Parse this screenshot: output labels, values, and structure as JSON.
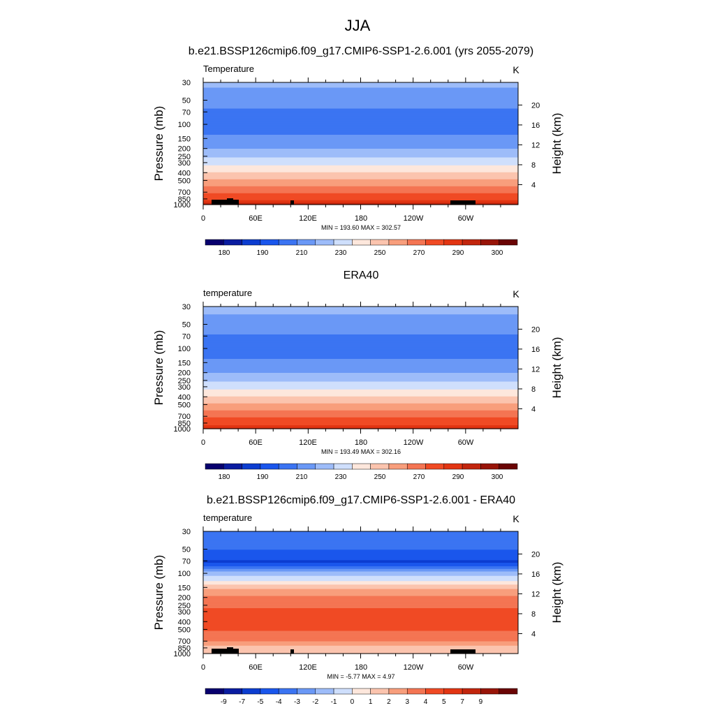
{
  "figure": {
    "season": "JJA"
  },
  "chart_data": [
    {
      "type": "heatmap",
      "title": "b.e21.BSSP126cmip6.f09_g17.CMIP6-SSP1-2.6.001 (yrs 2055-2079)",
      "variable_label": "Temperature",
      "units": "K",
      "ylabel": "Pressure (mb)",
      "ylabel_right": "Height (km)",
      "y_scale": "log",
      "y_ticks": [
        30,
        50,
        70,
        100,
        150,
        200,
        250,
        300,
        400,
        500,
        700,
        850,
        1000
      ],
      "y_tick_labels": [
        "30",
        "50",
        "70",
        "100",
        "150",
        "200",
        "250",
        "300",
        "400",
        "500",
        "700",
        "850",
        "1000"
      ],
      "right_ticks_km": [
        4,
        8,
        12,
        16,
        20
      ],
      "right_tick_labels": [
        "4",
        "8",
        "12",
        "16",
        "20"
      ],
      "x_tick_labels": [
        "0",
        "60E",
        "120E",
        "180",
        "120W",
        "60W"
      ],
      "stats_label": "MIN = 193.60  MAX = 302.57",
      "min": 193.6,
      "max": 302.57,
      "profile": [
        [
          30,
          222
        ],
        [
          40,
          218
        ],
        [
          50,
          214
        ],
        [
          60,
          211
        ],
        [
          70,
          208
        ],
        [
          80,
          206
        ],
        [
          100,
          206
        ],
        [
          120,
          208
        ],
        [
          150,
          212
        ],
        [
          200,
          220
        ],
        [
          250,
          228
        ],
        [
          300,
          236
        ],
        [
          400,
          251
        ],
        [
          500,
          262
        ],
        [
          600,
          271
        ],
        [
          700,
          279
        ],
        [
          850,
          288
        ],
        [
          925,
          293
        ],
        [
          1000,
          298
        ]
      ],
      "colorbar_labels": [
        "180",
        "190",
        "210",
        "230",
        "250",
        "270",
        "290",
        "300"
      ],
      "colorbar_levels": [
        175,
        180,
        185,
        190,
        200,
        210,
        220,
        230,
        240,
        250,
        260,
        270,
        280,
        290,
        295,
        300,
        305
      ],
      "show_topography": true
    },
    {
      "type": "heatmap",
      "title": "ERA40",
      "variable_label": "temperature",
      "units": "K",
      "ylabel": "Pressure (mb)",
      "ylabel_right": "Height (km)",
      "y_scale": "log",
      "y_ticks": [
        30,
        50,
        70,
        100,
        150,
        200,
        250,
        300,
        400,
        500,
        700,
        850,
        1000
      ],
      "y_tick_labels": [
        "30",
        "50",
        "70",
        "100",
        "150",
        "200",
        "250",
        "300",
        "400",
        "500",
        "700",
        "850",
        "1000"
      ],
      "right_ticks_km": [
        4,
        8,
        12,
        16,
        20
      ],
      "right_tick_labels": [
        "4",
        "8",
        "12",
        "16",
        "20"
      ],
      "x_tick_labels": [
        "0",
        "60E",
        "120E",
        "180",
        "120W",
        "60W"
      ],
      "stats_label": "MIN = 193.49  MAX = 302.16",
      "min": 193.49,
      "max": 302.16,
      "profile": [
        [
          30,
          223
        ],
        [
          40,
          219
        ],
        [
          50,
          215
        ],
        [
          60,
          212
        ],
        [
          70,
          209
        ],
        [
          80,
          207
        ],
        [
          100,
          206
        ],
        [
          120,
          208
        ],
        [
          150,
          212
        ],
        [
          200,
          220
        ],
        [
          250,
          228
        ],
        [
          300,
          236
        ],
        [
          400,
          251
        ],
        [
          500,
          262
        ],
        [
          600,
          271
        ],
        [
          700,
          278
        ],
        [
          850,
          287
        ],
        [
          925,
          292
        ],
        [
          1000,
          297
        ]
      ],
      "colorbar_labels": [
        "180",
        "190",
        "210",
        "230",
        "250",
        "270",
        "290",
        "300"
      ],
      "colorbar_levels": [
        175,
        180,
        185,
        190,
        200,
        210,
        220,
        230,
        240,
        250,
        260,
        270,
        280,
        290,
        295,
        300,
        305
      ],
      "show_topography": false
    },
    {
      "type": "heatmap",
      "title": "b.e21.BSSP126cmip6.f09_g17.CMIP6-SSP1-2.6.001 - ERA40",
      "variable_label": "temperature",
      "units": "K",
      "ylabel": "Pressure (mb)",
      "ylabel_right": "Height (km)",
      "y_scale": "log",
      "y_ticks": [
        30,
        50,
        70,
        100,
        150,
        200,
        250,
        300,
        400,
        500,
        700,
        850,
        1000
      ],
      "y_tick_labels": [
        "30",
        "50",
        "70",
        "100",
        "150",
        "200",
        "250",
        "300",
        "400",
        "500",
        "700",
        "850",
        "1000"
      ],
      "right_ticks_km": [
        4,
        8,
        12,
        16,
        20
      ],
      "right_tick_labels": [
        "4",
        "8",
        "12",
        "16",
        "20"
      ],
      "x_tick_labels": [
        "0",
        "60E",
        "120E",
        "180",
        "120W",
        "60W"
      ],
      "stats_label": "MIN =  -5.77  MAX =   4.97",
      "min": -5.77,
      "max": 4.97,
      "profile": [
        [
          30,
          -3.5
        ],
        [
          45,
          -3.7
        ],
        [
          55,
          -4.2
        ],
        [
          65,
          -4.8
        ],
        [
          72,
          -5.2
        ],
        [
          80,
          -4.3
        ],
        [
          90,
          -2.6
        ],
        [
          100,
          -1.5
        ],
        [
          115,
          -0.6
        ],
        [
          130,
          0.3
        ],
        [
          150,
          1.8
        ],
        [
          180,
          2.8
        ],
        [
          220,
          3.5
        ],
        [
          300,
          4.2
        ],
        [
          400,
          4.4
        ],
        [
          500,
          4.1
        ],
        [
          600,
          3.7
        ],
        [
          700,
          3.0
        ],
        [
          800,
          2.0
        ],
        [
          900,
          1.3
        ],
        [
          1000,
          1.5
        ]
      ],
      "colorbar_labels": [
        "-9",
        "-7",
        "-5",
        "-4",
        "-3",
        "-2",
        "-1",
        "0",
        "1",
        "2",
        "3",
        "4",
        "5",
        "7",
        "9"
      ],
      "colorbar_levels": [
        -10,
        -9,
        -7,
        -5,
        -4,
        -3,
        -2,
        -1,
        0,
        1,
        2,
        3,
        4,
        5,
        7,
        9,
        10
      ],
      "show_topography": true
    }
  ],
  "colors": {
    "palette": [
      "#08006e",
      "#0a1ca0",
      "#0c3dd0",
      "#1a56ec",
      "#3b74f2",
      "#6a98f6",
      "#9dbcf9",
      "#cfdffc",
      "#fde7dc",
      "#fbc4ae",
      "#f89e7c",
      "#f47553",
      "#f04a24",
      "#e23512",
      "#c2250d",
      "#981408",
      "#6a0404"
    ],
    "topography": "#000000"
  }
}
